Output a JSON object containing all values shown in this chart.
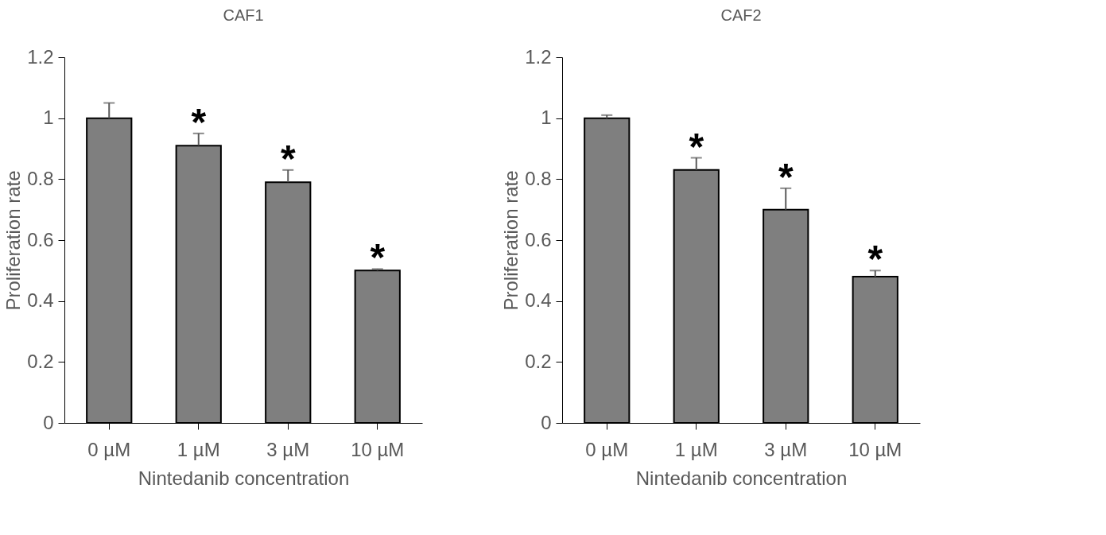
{
  "chart_data": [
    {
      "type": "bar",
      "title": "CAF1",
      "xlabel": "Nintedanib   concentration",
      "ylabel": "Proliferation rate",
      "categories": [
        "0 µM",
        "1 µM",
        "3 µM",
        "10 µM"
      ],
      "values": [
        1.0,
        0.91,
        0.79,
        0.5
      ],
      "color": "#7f7f7f",
      "errors": [
        [
          1.0,
          1.05
        ],
        [
          0.91,
          0.95
        ],
        [
          0.79,
          0.83
        ],
        [
          0.5,
          0.505
        ]
      ],
      "ylim": [
        0,
        1.2
      ],
      "yticks": [
        0,
        0.2,
        0.4,
        0.6,
        0.8,
        1,
        1.2
      ],
      "grid": false,
      "annotations": [
        "*",
        "*",
        "*"
      ]
    },
    {
      "type": "bar",
      "title": "CAF2",
      "xlabel": "Nintedanib   concentration",
      "ylabel": "Proliferation rate",
      "categories": [
        "0 µM",
        "1 µM",
        "3 µM",
        "10 µM"
      ],
      "values": [
        1.0,
        0.83,
        0.7,
        0.48
      ],
      "color": "#7f7f7f",
      "errors": [
        [
          1.0,
          1.01
        ],
        [
          0.83,
          0.87
        ],
        [
          0.7,
          0.77
        ],
        [
          0.48,
          0.5
        ]
      ],
      "ylim": [
        0,
        1.2
      ],
      "yticks": [
        0,
        0.2,
        0.4,
        0.6,
        0.8,
        1,
        1.2
      ],
      "grid": false,
      "annotations": [
        "*",
        "*",
        "*"
      ]
    }
  ]
}
